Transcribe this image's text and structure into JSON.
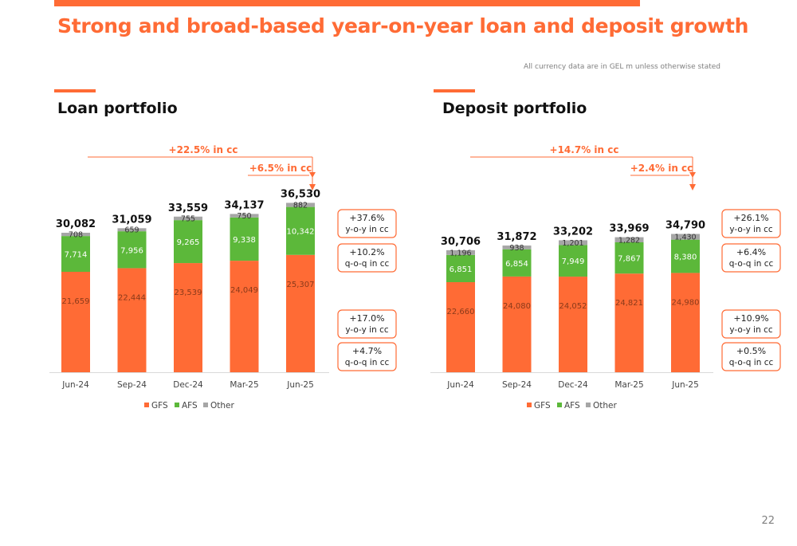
{
  "title": "Strong and broad-based year-on-year loan and deposit growth",
  "currency_note": "All currency data are in GEL m unless otherwise stated",
  "page_number": "22",
  "colors": {
    "accent": "#ff6b35",
    "gfs": "#ff6b35",
    "afs": "#5cb83a",
    "other": "#a6a6a6"
  },
  "chart_data": [
    {
      "type": "bar",
      "stacked": true,
      "title": "Loan portfolio",
      "categories": [
        "Jun-24",
        "Sep-24",
        "Dec-24",
        "Mar-25",
        "Jun-25"
      ],
      "series": [
        {
          "name": "GFS",
          "values": [
            21659,
            22444,
            23539,
            24049,
            25307
          ]
        },
        {
          "name": "AFS",
          "values": [
            7714,
            7956,
            9265,
            9338,
            10342
          ]
        },
        {
          "name": "Other",
          "values": [
            708,
            659,
            755,
            750,
            882
          ]
        }
      ],
      "series_labels": [
        [
          "21,659",
          "22,444",
          "23,539",
          "24,049",
          "25,307"
        ],
        [
          "7,714",
          "7,956",
          "9,265",
          "9,338",
          "10,342"
        ],
        [
          "708",
          "659",
          "755",
          "750",
          "882"
        ]
      ],
      "totals": [
        "30,082",
        "31,059",
        "33,559",
        "34,137",
        "36,530"
      ],
      "legend": {
        "position": "bottom",
        "items": [
          "GFS",
          "AFS",
          "Other"
        ]
      },
      "annotations": {
        "arrow_long": "+22.5% in cc",
        "arrow_short": "+6.5% in cc",
        "afs_yoy": "+37.6%",
        "afs_yoy_sub": "y-o-y in cc",
        "afs_qoq": "+10.2%",
        "afs_qoq_sub": "q-o-q in cc",
        "gfs_yoy": "+17.0%",
        "gfs_yoy_sub": "y-o-y in cc",
        "gfs_qoq": "+4.7%",
        "gfs_qoq_sub": "q-o-q in cc"
      }
    },
    {
      "type": "bar",
      "stacked": true,
      "title": "Deposit portfolio",
      "categories": [
        "Jun-24",
        "Sep-24",
        "Dec-24",
        "Mar-25",
        "Jun-25"
      ],
      "series": [
        {
          "name": "GFS",
          "values": [
            22660,
            24080,
            24052,
            24821,
            24980
          ]
        },
        {
          "name": "AFS",
          "values": [
            6851,
            6854,
            7949,
            7867,
            8380
          ]
        },
        {
          "name": "Other",
          "values": [
            1196,
            938,
            1201,
            1282,
            1430
          ]
        }
      ],
      "series_labels": [
        [
          "22,660",
          "24,080",
          "24,052",
          "24,821",
          "24,980"
        ],
        [
          "6,851",
          "6,854",
          "7,949",
          "7,867",
          "8,380"
        ],
        [
          "1,196",
          "938",
          "1,201",
          "1,282",
          "1,430"
        ]
      ],
      "totals": [
        "30,706",
        "31,872",
        "33,202",
        "33,969",
        "34,790"
      ],
      "legend": {
        "position": "bottom",
        "items": [
          "GFS",
          "AFS",
          "Other"
        ]
      },
      "annotations": {
        "arrow_long": "+14.7% in cc",
        "arrow_short": "+2.4% in cc",
        "afs_yoy": "+26.1%",
        "afs_yoy_sub": "y-o-y in cc",
        "afs_qoq": "+6.4%",
        "afs_qoq_sub": "q-o-q in cc",
        "gfs_yoy": "+10.9%",
        "gfs_yoy_sub": "y-o-y in cc",
        "gfs_qoq": "+0.5%",
        "gfs_qoq_sub": "q-o-q in cc"
      }
    }
  ]
}
